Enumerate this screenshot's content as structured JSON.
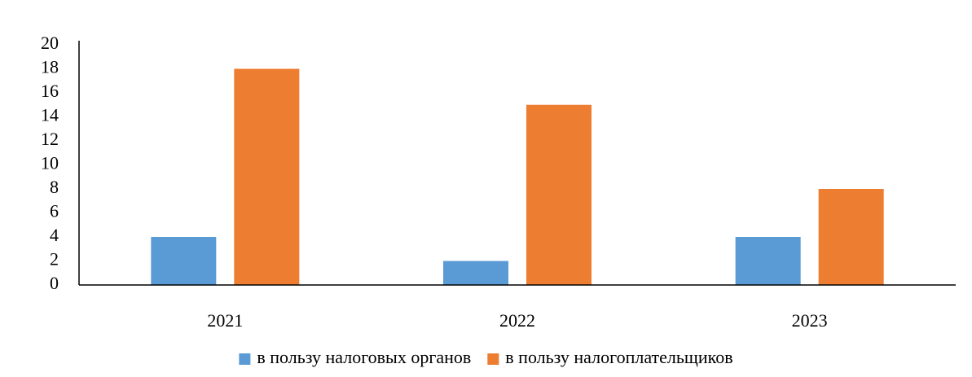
{
  "chart_data": {
    "type": "bar",
    "categories": [
      "2021",
      "2022",
      "2023"
    ],
    "series": [
      {
        "name": "в пользу налоговых органов",
        "color": "#5b9bd5",
        "values": [
          4,
          2,
          4
        ]
      },
      {
        "name": "в пользу налогоплательщиков",
        "color": "#ed7d31",
        "values": [
          18,
          15,
          8
        ]
      }
    ],
    "ylim": [
      0,
      20
    ],
    "yticks": [
      0,
      2,
      4,
      6,
      8,
      10,
      12,
      14,
      16,
      18,
      20
    ],
    "grid": false,
    "legend": "bottom"
  }
}
